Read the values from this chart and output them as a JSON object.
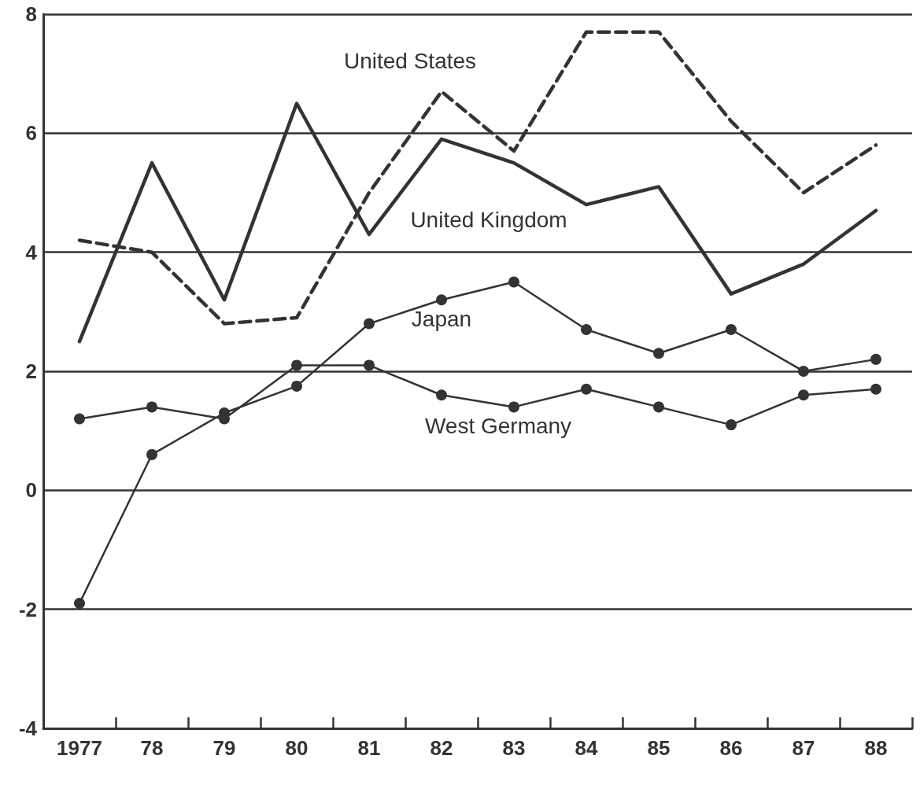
{
  "chart_data": {
    "type": "line",
    "categories": [
      "1977",
      "78",
      "79",
      "80",
      "81",
      "82",
      "83",
      "84",
      "85",
      "86",
      "87",
      "88"
    ],
    "series": [
      {
        "name": "United States",
        "color": "#333333",
        "line_style": "dashed",
        "marker": "none",
        "values": [
          4.2,
          4.0,
          2.8,
          2.9,
          5.0,
          6.7,
          5.7,
          7.7,
          7.7,
          6.2,
          5.0,
          5.8
        ]
      },
      {
        "name": "United Kingdom",
        "color": "#333333",
        "line_style": "solid",
        "marker": "none",
        "values": [
          2.5,
          5.5,
          3.2,
          6.5,
          4.3,
          5.9,
          5.5,
          4.8,
          5.1,
          3.3,
          3.8,
          4.7
        ]
      },
      {
        "name": "Japan",
        "color": "#333333",
        "line_style": "solid",
        "marker": "circle",
        "values": [
          -1.9,
          0.6,
          1.3,
          1.75,
          2.8,
          3.2,
          3.5,
          2.7,
          2.3,
          2.7,
          2.0,
          2.2
        ]
      },
      {
        "name": "West Germany",
        "color": "#333333",
        "line_style": "solid",
        "marker": "circle",
        "values": [
          1.2,
          1.4,
          1.2,
          2.1,
          2.1,
          1.6,
          1.4,
          1.7,
          1.4,
          1.1,
          1.6,
          1.7
        ]
      }
    ],
    "ylim": [
      -4,
      8
    ],
    "yticks": [
      -4,
      -2,
      0,
      2,
      4,
      6,
      8
    ],
    "grid": "y"
  }
}
